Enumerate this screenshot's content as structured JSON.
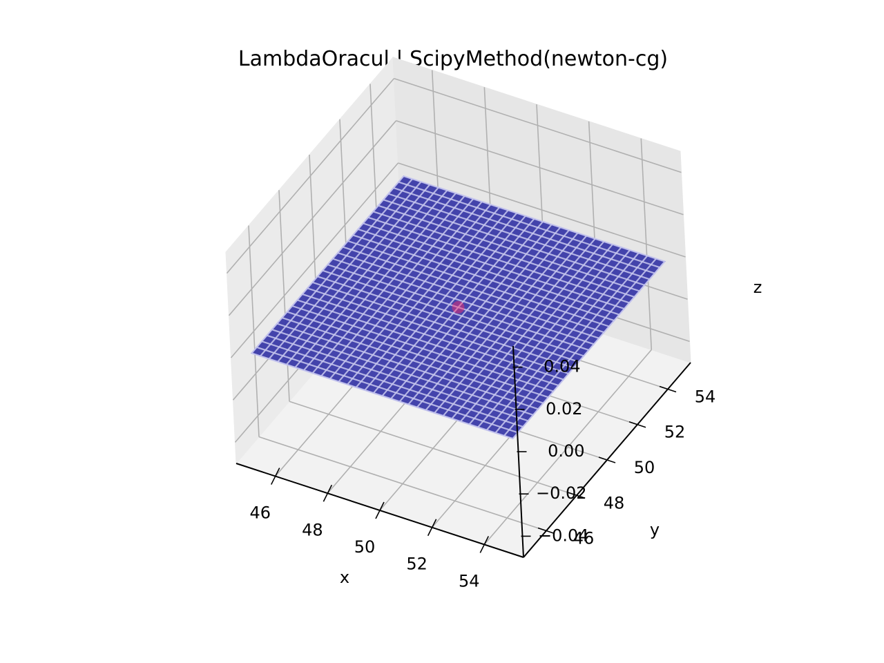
{
  "chart_data": {
    "type": "surface3d",
    "title": "LambdaOracul | ScipyMethod(newton-cg)",
    "xlabel": "x",
    "ylabel": "y",
    "zlabel": "z",
    "x_ticks": [
      "46",
      "48",
      "50",
      "52",
      "54"
    ],
    "y_ticks": [
      "46",
      "48",
      "50",
      "52",
      "54"
    ],
    "z_ticks": [
      "0.04",
      "0.02",
      "0.00",
      "−0.02",
      "−0.04"
    ],
    "xlim": [
      44.5,
      55.5
    ],
    "ylim": [
      44.5,
      55.5
    ],
    "zlim": [
      -0.05,
      0.05
    ],
    "surface": {
      "x_range": [
        45,
        55
      ],
      "y_range": [
        45,
        55
      ],
      "z_value": 0.0,
      "grid_count": 30,
      "face_color": "#3a3aa8",
      "edge_color": "#c8c8ee"
    },
    "points": [
      {
        "x": 50,
        "y": 50,
        "z": 0.0,
        "color": "#ff2a6a"
      }
    ],
    "grid": true,
    "pane_colors": [
      "#f2f2f2",
      "#ebebeb",
      "#e6e6e6"
    ]
  }
}
